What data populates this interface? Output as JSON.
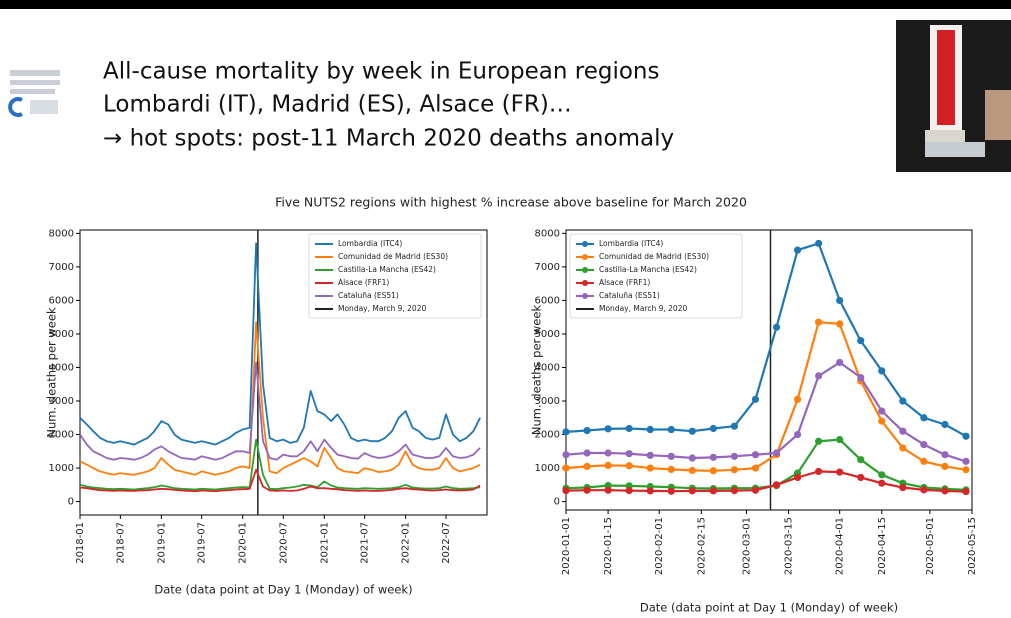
{
  "slide": {
    "lines": [
      "All-cause mortality by week in European regions",
      "Lombardi (IT), Madrid (ES), Alsace (FR)…",
      "→ hot spots: post-11 March 2020 deaths anomaly"
    ],
    "suptitle": "Five NUTS2 regions with highest % increase above baseline for March 2020"
  },
  "chart_data": [
    {
      "type": "line",
      "markers": false,
      "legend": "upper right",
      "xlabel": "Date (data point at Day 1 (Monday) of week)",
      "ylabel": "Num. deaths per week",
      "x": [
        "2018-01",
        "2018-02",
        "2018-03",
        "2018-04",
        "2018-05",
        "2018-06",
        "2018-07",
        "2018-08",
        "2018-09",
        "2018-10",
        "2018-11",
        "2018-12",
        "2019-01",
        "2019-02",
        "2019-03",
        "2019-04",
        "2019-05",
        "2019-06",
        "2019-07",
        "2019-08",
        "2019-09",
        "2019-10",
        "2019-11",
        "2019-12",
        "2020-01",
        "2020-02",
        "2020-03",
        "2020-04",
        "2020-05",
        "2020-06",
        "2020-07",
        "2020-08",
        "2020-09",
        "2020-10",
        "2020-11",
        "2020-12",
        "2021-01",
        "2021-02",
        "2021-03",
        "2021-04",
        "2021-05",
        "2021-06",
        "2021-07",
        "2021-08",
        "2021-09",
        "2021-10",
        "2021-11",
        "2021-12",
        "2022-01",
        "2022-02",
        "2022-03",
        "2022-04",
        "2022-05",
        "2022-06",
        "2022-07",
        "2022-08",
        "2022-09",
        "2022-10",
        "2022-11",
        "2022-12"
      ],
      "xlim": [
        "2018-01",
        "2023-01"
      ],
      "xticks": [
        "2018-01",
        "2018-07",
        "2019-01",
        "2019-07",
        "2020-01",
        "2020-07",
        "2021-01",
        "2021-07",
        "2022-01",
        "2022-07"
      ],
      "ylim": [
        -400,
        8100
      ],
      "yticks": [
        0,
        1000,
        2000,
        3000,
        4000,
        5000,
        6000,
        7000,
        8000
      ],
      "vline": {
        "x": "2020-03-09",
        "label": "Monday, March 9, 2020",
        "color": "#222222"
      },
      "series": [
        {
          "name": "Lombardia (ITC4)",
          "color": "#1f77b4",
          "values": [
            2500,
            2300,
            2100,
            1900,
            1800,
            1750,
            1800,
            1750,
            1700,
            1800,
            1900,
            2100,
            2400,
            2300,
            2000,
            1850,
            1800,
            1750,
            1800,
            1750,
            1700,
            1800,
            1900,
            2050,
            2150,
            2200,
            7700,
            3500,
            1900,
            1800,
            1850,
            1750,
            1800,
            2200,
            3300,
            2700,
            2600,
            2400,
            2600,
            2300,
            1900,
            1800,
            1850,
            1800,
            1800,
            1900,
            2100,
            2500,
            2700,
            2200,
            2100,
            1900,
            1850,
            1900,
            2600,
            2000,
            1800,
            1900,
            2100,
            2500
          ]
        },
        {
          "name": "Comunidad de Madrid (ES30)",
          "color": "#ff7f0e",
          "values": [
            1200,
            1100,
            1000,
            900,
            850,
            800,
            850,
            820,
            800,
            850,
            900,
            1000,
            1300,
            1100,
            950,
            900,
            850,
            800,
            900,
            850,
            800,
            850,
            900,
            1000,
            1050,
            1000,
            5350,
            2500,
            900,
            850,
            1000,
            1100,
            1200,
            1300,
            1200,
            1050,
            1600,
            1300,
            1000,
            900,
            880,
            850,
            1000,
            950,
            880,
            900,
            950,
            1100,
            1500,
            1100,
            1000,
            950,
            950,
            1000,
            1300,
            1000,
            900,
            950,
            1000,
            1100
          ]
        },
        {
          "name": "Castilla-La Mancha (ES42)",
          "color": "#2ca02c",
          "values": [
            500,
            450,
            420,
            400,
            380,
            370,
            380,
            370,
            360,
            380,
            400,
            430,
            480,
            440,
            400,
            380,
            370,
            360,
            380,
            370,
            360,
            380,
            400,
            420,
            430,
            420,
            1850,
            800,
            380,
            370,
            400,
            420,
            450,
            500,
            480,
            430,
            600,
            480,
            420,
            400,
            390,
            380,
            400,
            390,
            380,
            390,
            400,
            430,
            500,
            420,
            400,
            390,
            390,
            400,
            450,
            400,
            380,
            390,
            400,
            430
          ]
        },
        {
          "name": "Alsace (FRF1)",
          "color": "#d62728",
          "values": [
            420,
            400,
            370,
            340,
            330,
            320,
            330,
            320,
            320,
            330,
            340,
            360,
            380,
            370,
            350,
            330,
            320,
            310,
            330,
            320,
            310,
            330,
            340,
            360,
            370,
            380,
            950,
            450,
            330,
            320,
            330,
            320,
            330,
            380,
            450,
            400,
            400,
            380,
            370,
            340,
            330,
            320,
            330,
            320,
            320,
            330,
            350,
            380,
            400,
            370,
            360,
            340,
            330,
            340,
            360,
            340,
            330,
            340,
            360,
            480
          ]
        },
        {
          "name": "Cataluña (ES51)",
          "color": "#9467bd",
          "values": [
            2000,
            1700,
            1500,
            1400,
            1300,
            1250,
            1300,
            1280,
            1250,
            1300,
            1400,
            1550,
            1650,
            1500,
            1400,
            1300,
            1280,
            1250,
            1350,
            1300,
            1250,
            1300,
            1400,
            1500,
            1500,
            1450,
            4150,
            1800,
            1300,
            1250,
            1400,
            1350,
            1350,
            1500,
            1800,
            1500,
            1850,
            1600,
            1400,
            1350,
            1300,
            1280,
            1450,
            1350,
            1300,
            1320,
            1380,
            1500,
            1700,
            1400,
            1350,
            1300,
            1300,
            1350,
            1600,
            1350,
            1300,
            1320,
            1400,
            1600
          ]
        }
      ]
    },
    {
      "type": "line",
      "markers": true,
      "legend": "upper left",
      "xlabel": "Date (data point at Day 1 (Monday) of week)",
      "ylabel": "Num. deaths per week",
      "x": [
        "2020-01-01",
        "2020-01-08",
        "2020-01-15",
        "2020-01-22",
        "2020-01-29",
        "2020-02-05",
        "2020-02-12",
        "2020-02-19",
        "2020-02-26",
        "2020-03-04",
        "2020-03-11",
        "2020-03-18",
        "2020-03-25",
        "2020-04-01",
        "2020-04-08",
        "2020-04-15",
        "2020-04-22",
        "2020-04-29",
        "2020-05-06",
        "2020-05-13"
      ],
      "xlim": [
        "2020-01-01",
        "2020-05-15"
      ],
      "xticks": [
        "2020-01-01",
        "2020-01-15",
        "2020-02-01",
        "2020-02-15",
        "2020-03-01",
        "2020-03-15",
        "2020-04-01",
        "2020-04-15",
        "2020-05-01",
        "2020-05-15"
      ],
      "ylim": [
        -250,
        8100
      ],
      "yticks": [
        0,
        1000,
        2000,
        3000,
        4000,
        5000,
        6000,
        7000,
        8000
      ],
      "vline": {
        "x": "2020-03-09",
        "label": "Monday, March 9, 2020",
        "color": "#222222"
      },
      "series": [
        {
          "name": "Lombardia (ITC4)",
          "color": "#1f77b4",
          "values": [
            2080,
            2120,
            2170,
            2180,
            2150,
            2150,
            2100,
            2180,
            2250,
            3050,
            5200,
            7500,
            7700,
            6000,
            4800,
            3900,
            3000,
            2500,
            2300,
            1950
          ]
        },
        {
          "name": "Comunidad de Madrid (ES30)",
          "color": "#ff7f0e",
          "values": [
            1000,
            1050,
            1080,
            1070,
            1000,
            960,
            930,
            920,
            950,
            1000,
            1400,
            3050,
            5350,
            5300,
            3600,
            2400,
            1600,
            1200,
            1050,
            950
          ]
        },
        {
          "name": "Castilla-La Mancha (ES42)",
          "color": "#2ca02c",
          "values": [
            400,
            420,
            480,
            470,
            450,
            430,
            400,
            390,
            400,
            400,
            480,
            850,
            1800,
            1850,
            1250,
            800,
            550,
            420,
            380,
            350
          ]
        },
        {
          "name": "Alsace (FRF1)",
          "color": "#d62728",
          "values": [
            330,
            340,
            340,
            330,
            320,
            310,
            320,
            320,
            330,
            340,
            500,
            720,
            900,
            880,
            720,
            550,
            420,
            350,
            320,
            300
          ]
        },
        {
          "name": "Cataluña (ES51)",
          "color": "#9467bd",
          "values": [
            1400,
            1450,
            1450,
            1430,
            1380,
            1350,
            1300,
            1320,
            1350,
            1400,
            1450,
            2000,
            3750,
            4150,
            3700,
            2700,
            2100,
            1700,
            1400,
            1200
          ]
        }
      ]
    }
  ]
}
